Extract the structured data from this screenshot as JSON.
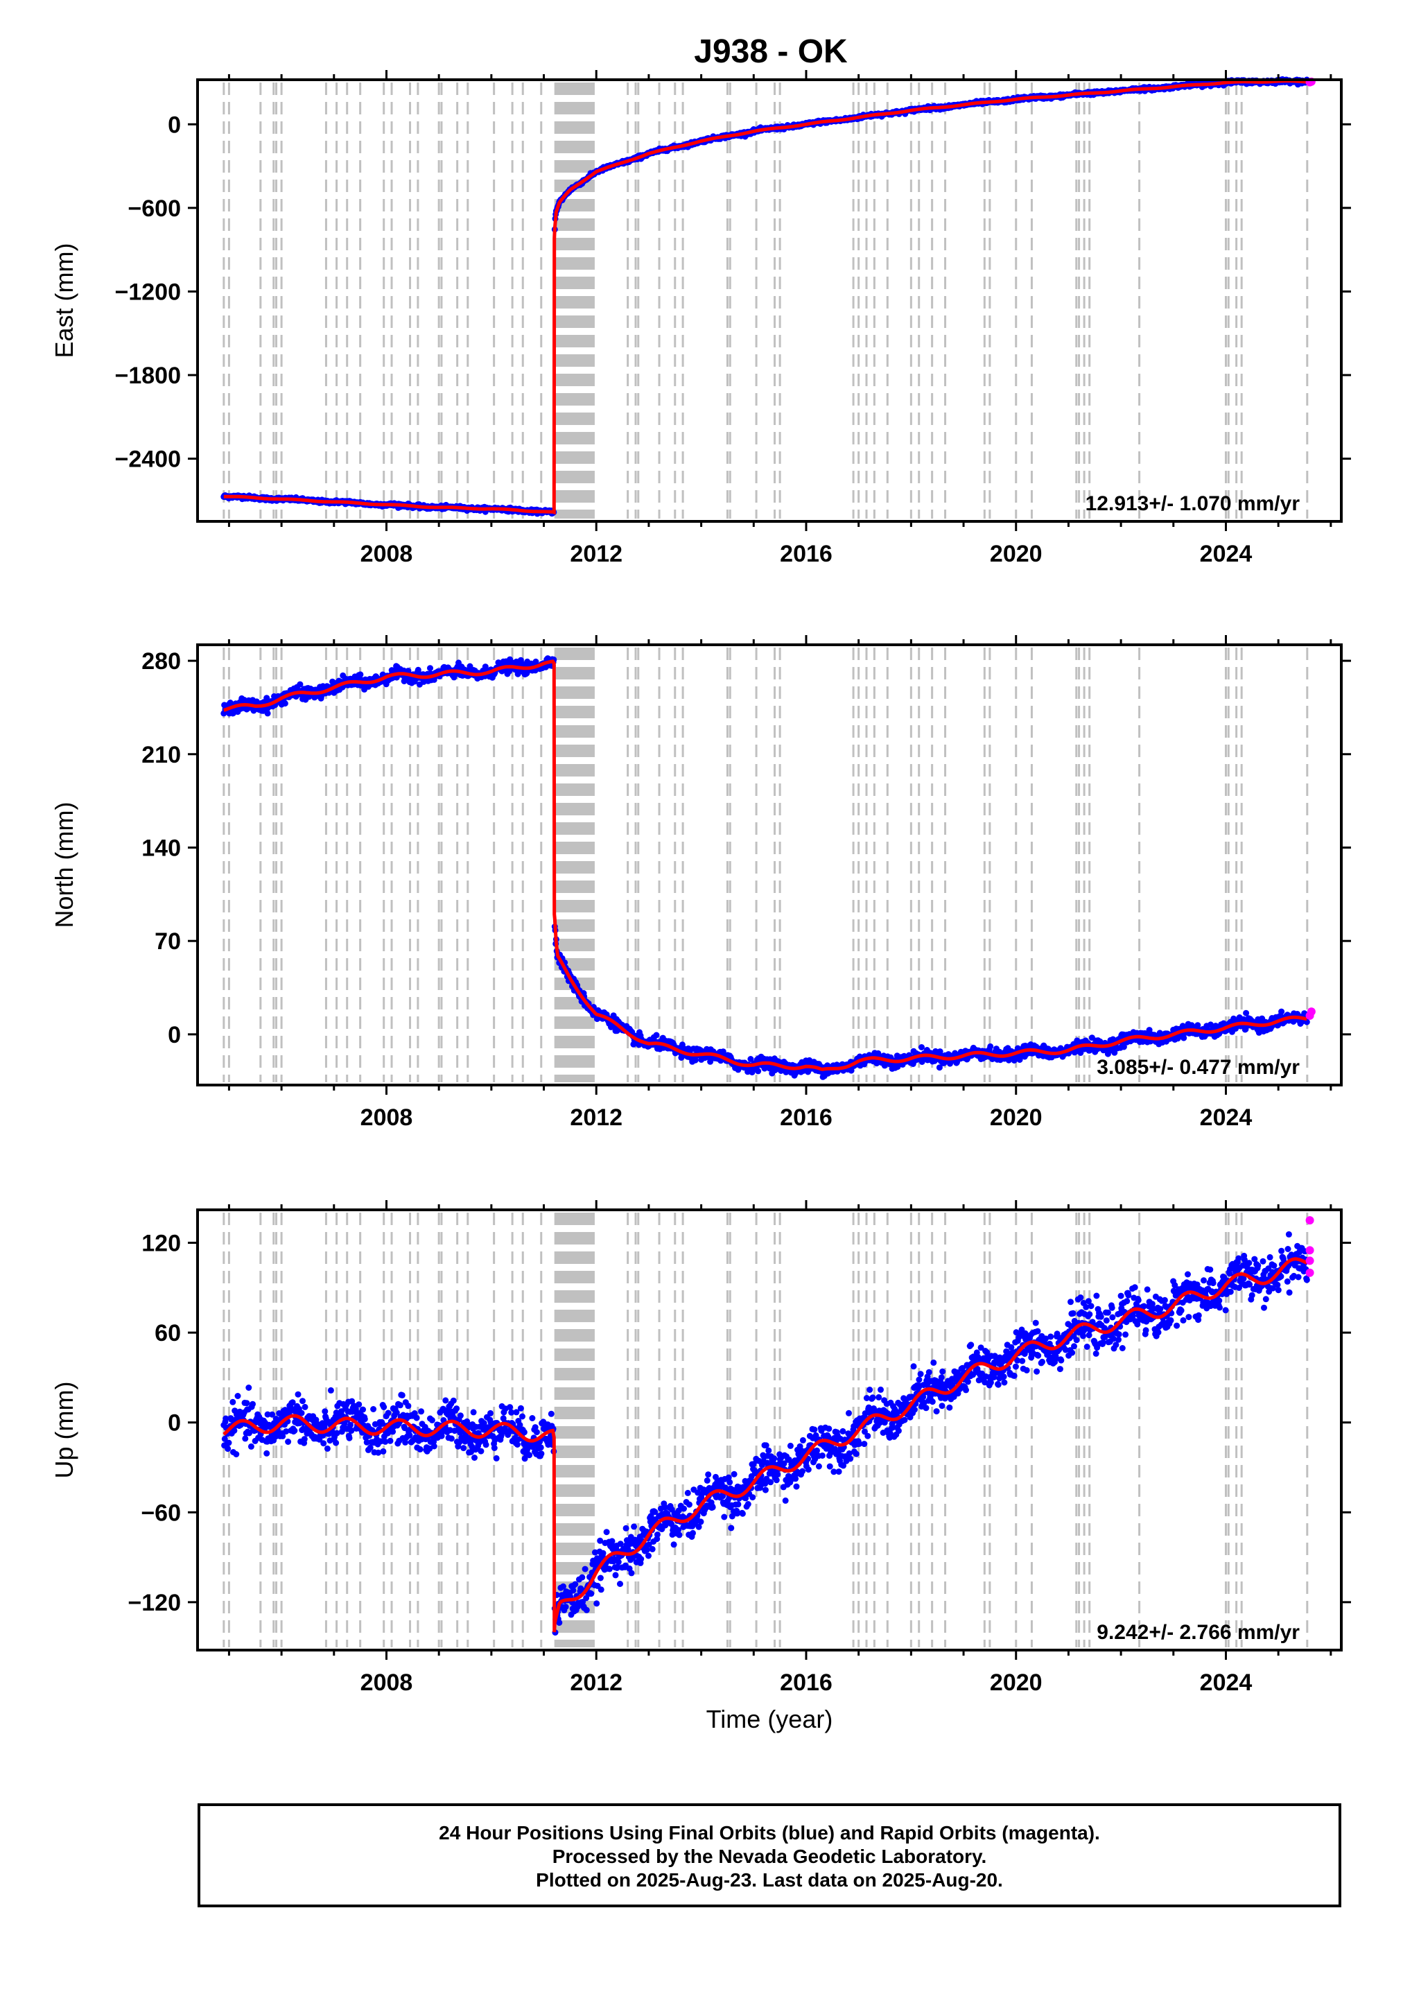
{
  "title": "J938 - OK",
  "footer": {
    "line1": "24 Hour Positions Using Final Orbits (blue) and Rapid Orbits (magenta).",
    "line2": "Processed by the Nevada Geodetic Laboratory.",
    "line3": "Plotted on 2025-Aug-23. Last data on 2025-Aug-20."
  },
  "colors": {
    "final_orbits": "#0000ff",
    "rapid_orbits": "#ff00ff",
    "model": "#ff0000",
    "event_lines": "#c0c0c0"
  },
  "chart_data": [
    {
      "type": "scatter",
      "component": "east",
      "ylabel": "East (mm)",
      "xlabel": "",
      "xlim": [
        2004.4,
        2026.2
      ],
      "ylim": [
        -2850,
        320
      ],
      "xticks": [
        2008,
        2012,
        2016,
        2020,
        2024
      ],
      "yticks": [
        0,
        -600,
        -1200,
        -1800,
        -2400
      ],
      "rate_label": "12.913+/- 1.070 mm/yr",
      "series": [
        {
          "role": "final_orbits",
          "x": [
            2004.9,
            2006.0,
            2007.0,
            2008.0,
            2009.0,
            2010.0,
            2011.0,
            2011.19,
            2011.2,
            2011.22,
            2011.3,
            2011.5,
            2012.0,
            2013.0,
            2014.0,
            2015.0,
            2016.0,
            2017.0,
            2018.0,
            2019.0,
            2020.0,
            2021.0,
            2022.0,
            2023.0,
            2024.0,
            2025.0,
            2025.55
          ],
          "y": [
            -2670,
            -2690,
            -2710,
            -2730,
            -2750,
            -2760,
            -2780,
            -2785,
            -820,
            -650,
            -560,
            -470,
            -340,
            -210,
            -120,
            -50,
            0,
            50,
            100,
            140,
            180,
            210,
            240,
            270,
            300,
            310,
            305
          ]
        },
        {
          "role": "rapid_orbits",
          "x": [
            2025.6,
            2025.63
          ],
          "y": [
            302,
            306
          ]
        }
      ]
    },
    {
      "type": "scatter",
      "component": "north",
      "ylabel": "North (mm)",
      "xlabel": "",
      "xlim": [
        2004.4,
        2026.2
      ],
      "ylim": [
        -38,
        292
      ],
      "xticks": [
        2008,
        2012,
        2016,
        2020,
        2024
      ],
      "yticks": [
        280,
        210,
        140,
        70,
        0
      ],
      "rate_label": "3.085+/- 0.477 mm/yr",
      "series": [
        {
          "role": "final_orbits",
          "x": [
            2004.9,
            2005.5,
            2006.0,
            2007.0,
            2008.0,
            2009.0,
            2010.0,
            2011.0,
            2011.19,
            2011.2,
            2011.25,
            2011.5,
            2012.0,
            2013.0,
            2014.0,
            2015.0,
            2016.0,
            2016.3,
            2017.0,
            2018.0,
            2019.0,
            2020.0,
            2021.0,
            2022.0,
            2023.0,
            2024.0,
            2025.0,
            2025.55
          ],
          "y": [
            244,
            246,
            252,
            260,
            268,
            270,
            272,
            278,
            278,
            90,
            58,
            42,
            15,
            -7,
            -15,
            -23,
            -24,
            -28,
            -20,
            -18,
            -16,
            -14,
            -12,
            -5,
            0,
            5,
            10,
            12
          ]
        },
        {
          "role": "rapid_orbits",
          "x": [
            2025.6,
            2025.63
          ],
          "y": [
            14,
            17
          ]
        }
      ]
    },
    {
      "type": "scatter",
      "component": "up",
      "ylabel": "Up (mm)",
      "xlabel": "Time (year)",
      "xlim": [
        2004.4,
        2026.2
      ],
      "ylim": [
        -152,
        142
      ],
      "xticks": [
        2008,
        2012,
        2016,
        2020,
        2024
      ],
      "yticks": [
        120,
        60,
        0,
        -60,
        -120
      ],
      "rate_label": "9.242+/- 2.766 mm/yr",
      "series": [
        {
          "role": "final_orbits",
          "x": [
            2004.9,
            2005.5,
            2006.0,
            2007.0,
            2008.0,
            2009.0,
            2010.0,
            2011.0,
            2011.19,
            2011.2,
            2011.3,
            2011.6,
            2012.0,
            2013.0,
            2014.0,
            2015.0,
            2016.0,
            2017.0,
            2018.0,
            2019.0,
            2020.0,
            2021.0,
            2022.0,
            2023.0,
            2024.0,
            2025.0,
            2025.55
          ],
          "y": [
            -5,
            -3,
            0,
            -2,
            -3,
            -4,
            -5,
            -8,
            -10,
            -140,
            -125,
            -115,
            -100,
            -75,
            -55,
            -40,
            -22,
            -5,
            12,
            30,
            45,
            58,
            68,
            78,
            92,
            100,
            108
          ]
        },
        {
          "role": "rapid_orbits",
          "x": [
            2025.6,
            2025.6,
            2025.6,
            2025.6
          ],
          "y": [
            135,
            115,
            108,
            100
          ]
        }
      ]
    }
  ]
}
